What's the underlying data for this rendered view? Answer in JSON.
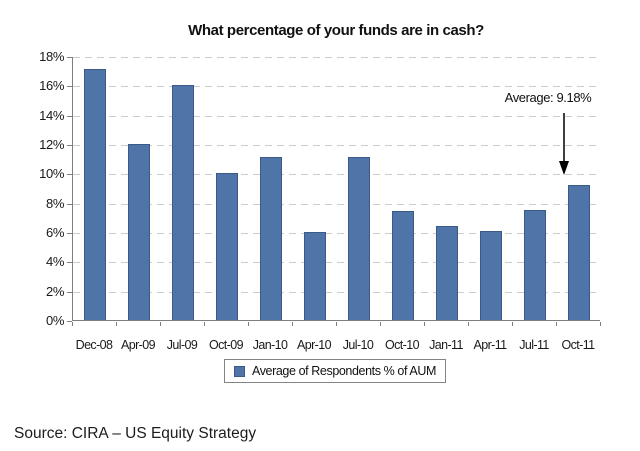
{
  "chart_data": {
    "type": "bar",
    "title": "What percentage of your funds are in cash?",
    "categories": [
      "Dec-08",
      "Apr-09",
      "Jul-09",
      "Oct-09",
      "Jan-10",
      "Apr-10",
      "Jul-10",
      "Oct-10",
      "Jan-11",
      "Apr-11",
      "Jul-11",
      "Oct-11"
    ],
    "values": [
      17.1,
      12.0,
      16.0,
      10.0,
      11.1,
      6.0,
      11.1,
      7.4,
      6.4,
      6.1,
      7.5,
      9.18
    ],
    "series_name": "Average of Respondents % of AUM",
    "xlabel": "",
    "ylabel": "",
    "ylim": [
      0,
      18
    ],
    "ytick_step": 2,
    "ytick_suffix": "%",
    "grid": "horizontal-dashed",
    "legend_position": "bottom",
    "annotation": {
      "text": "Average: 9.18%",
      "target_category": "Oct-11"
    },
    "colors": {
      "bar_fill": "#4e74a8",
      "bar_border": "#3a5a88",
      "gridline": "#cccccc",
      "axis": "#7f7f7f",
      "text": "#111111",
      "arrow": "#000000"
    }
  },
  "legend": {
    "label": "Average of Respondents % of AUM"
  },
  "annotation": {
    "text": "Average: 9.18%"
  },
  "source": {
    "text": "Source: CIRA – US Equity Strategy"
  }
}
